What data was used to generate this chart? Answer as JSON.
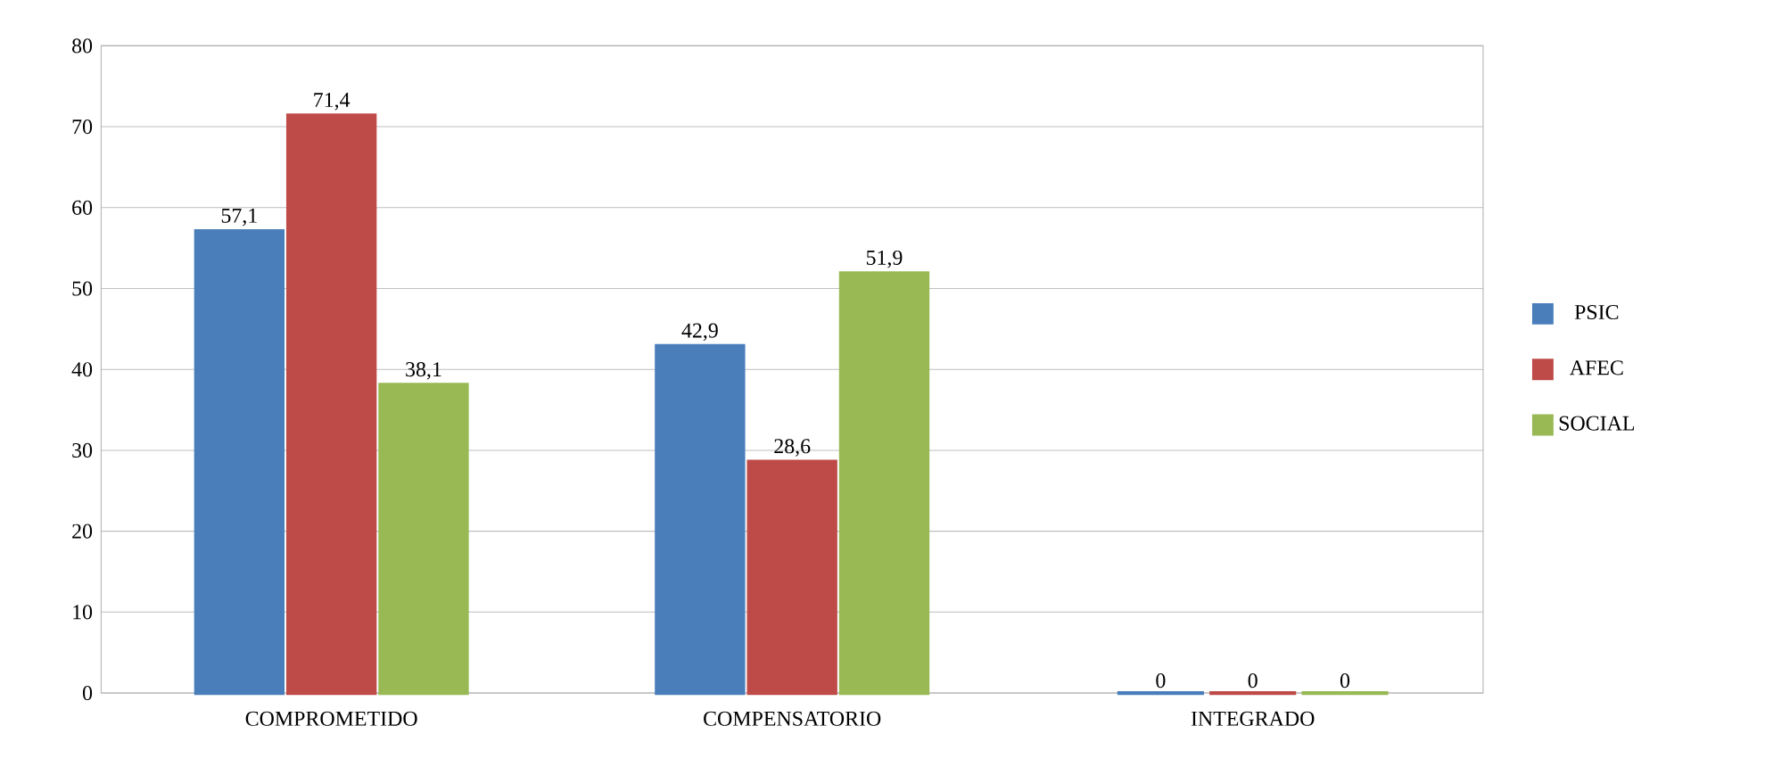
{
  "chart_data": {
    "type": "bar",
    "categories": [
      "COMPROMETIDO",
      "COMPENSATORIO",
      "INTEGRADO"
    ],
    "series": [
      {
        "name": "PSIC",
        "color": "#4a7ebb",
        "values": [
          57.1,
          42.9,
          0
        ],
        "value_labels": [
          "57,1",
          "42,9",
          "0"
        ]
      },
      {
        "name": "AFEC",
        "color": "#be4b48",
        "values": [
          71.4,
          28.6,
          0
        ],
        "value_labels": [
          "71,4",
          "28,6",
          "0"
        ]
      },
      {
        "name": "SOCIAL",
        "color": "#98b954",
        "values": [
          38.1,
          51.9,
          0
        ],
        "value_labels": [
          "38,1",
          "51,9",
          "0"
        ]
      }
    ],
    "ylim": [
      0,
      80
    ],
    "yticks": [
      0,
      10,
      20,
      30,
      40,
      50,
      60,
      70,
      80
    ],
    "grid": "y",
    "legend": "right"
  }
}
